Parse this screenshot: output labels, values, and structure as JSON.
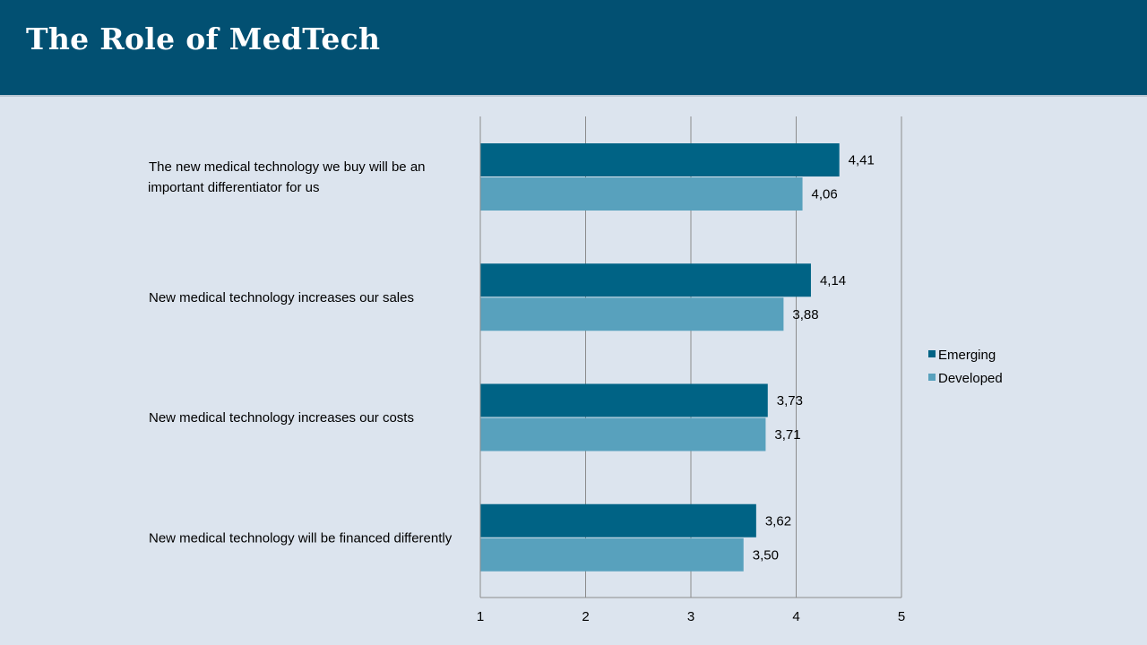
{
  "slide": {
    "title": "The Role of MedTech"
  },
  "colors": {
    "header_bg": "#025072",
    "background": "#dce4ee",
    "emerging": "#006385",
    "developed": "#58a1bd",
    "gridline": "#8c8c8c"
  },
  "chart_data": {
    "type": "bar",
    "orientation": "horizontal",
    "title": "",
    "xlabel": "",
    "ylabel": "",
    "xlim": [
      1,
      5
    ],
    "ticks": [
      "1",
      "2",
      "3",
      "4",
      "5"
    ],
    "tick_values": [
      1,
      2,
      3,
      4,
      5
    ],
    "grid": true,
    "legend_position": "right",
    "categories": [
      {
        "lines": [
          "The new medical technology we buy will be an",
          "important differentiator for us"
        ]
      },
      {
        "lines": [
          "New medical technology increases our sales"
        ]
      },
      {
        "lines": [
          "New medical technology increases our costs"
        ]
      },
      {
        "lines": [
          "New medical technology will be financed differently"
        ]
      }
    ],
    "series": [
      {
        "name": "Emerging",
        "values": [
          4.41,
          4.14,
          3.73,
          3.62
        ],
        "labels": [
          "4,41",
          "4,14",
          "3,73",
          "3,62"
        ]
      },
      {
        "name": "Developed",
        "values": [
          4.06,
          3.88,
          3.71,
          3.5
        ],
        "labels": [
          "4,06",
          "3,88",
          "3,71",
          "3,50"
        ]
      }
    ]
  }
}
